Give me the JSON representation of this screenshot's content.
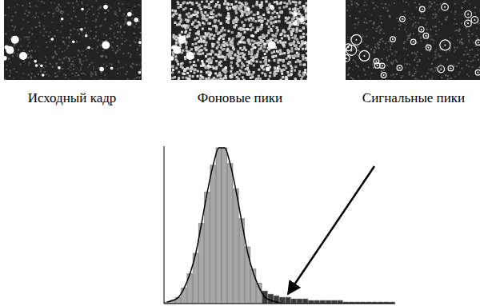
{
  "panels": [
    {
      "caption": "Исходный кадр"
    },
    {
      "caption": "Фоновые пики"
    },
    {
      "caption": "Сигнальные пики"
    }
  ],
  "chart_data": {
    "type": "histogram",
    "bins": [
      0,
      1,
      2,
      3,
      4,
      5,
      6,
      7,
      8,
      9,
      10,
      11,
      12,
      13,
      14,
      15,
      16,
      17,
      18,
      19,
      20,
      21,
      22,
      23,
      24,
      25,
      26,
      27,
      28,
      29,
      30,
      31,
      32,
      33,
      34,
      35,
      36,
      37,
      38,
      39,
      40
    ],
    "counts": [
      1,
      2,
      4,
      10,
      19,
      32,
      51,
      71,
      88,
      99,
      99,
      89,
      73,
      54,
      36,
      22,
      13,
      8,
      6,
      5,
      4,
      4,
      3,
      3,
      3,
      2,
      2,
      2,
      2,
      2,
      2,
      1,
      1,
      1,
      1,
      1,
      1,
      1,
      1,
      1
    ],
    "colors": [
      "#a8a8a8",
      "#a8a8a8",
      "#a8a8a8",
      "#a8a8a8",
      "#a8a8a8",
      "#a8a8a8",
      "#a8a8a8",
      "#a8a8a8",
      "#a8a8a8",
      "#a8a8a8",
      "#a8a8a8",
      "#a8a8a8",
      "#a8a8a8",
      "#a8a8a8",
      "#a8a8a8",
      "#a8a8a8",
      "#a8a8a8",
      "#3a3a3a",
      "#3a3a3a",
      "#3a3a3a",
      "#3a3a3a",
      "#3a3a3a",
      "#3a3a3a",
      "#3a3a3a",
      "#3a3a3a",
      "#3a3a3a",
      "#3a3a3a",
      "#3a3a3a",
      "#3a3a3a",
      "#3a3a3a",
      "#3a3a3a",
      "#3a3a3a",
      "#3a3a3a",
      "#3a3a3a",
      "#3a3a3a",
      "#3a3a3a",
      "#3a3a3a",
      "#3a3a3a",
      "#3a3a3a",
      "#3a3a3a"
    ],
    "curve": {
      "values": [
        1,
        2,
        4,
        10,
        19,
        32,
        51,
        71,
        88,
        99,
        99,
        88,
        71,
        51,
        32,
        19,
        10,
        4,
        2,
        1,
        0,
        0,
        0,
        0,
        0,
        0,
        0,
        0,
        0,
        0,
        0,
        0,
        0,
        0,
        0,
        0,
        0,
        0,
        0,
        0
      ],
      "color": "#000000"
    },
    "xlim": [
      0,
      40
    ],
    "ylim": [
      0,
      100
    ],
    "tick_labels": false,
    "grid": false
  }
}
